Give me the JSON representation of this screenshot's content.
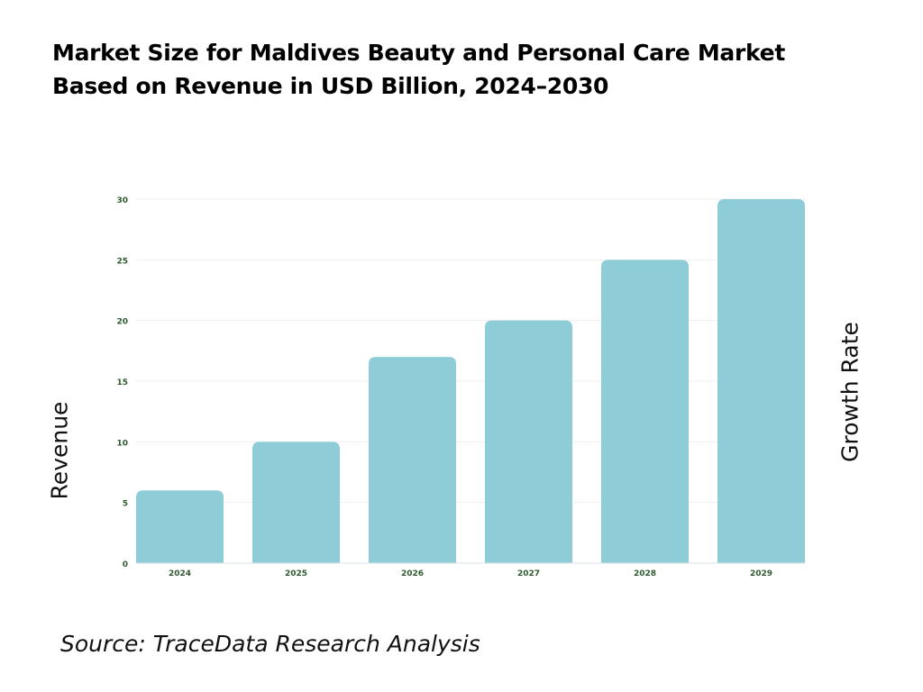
{
  "title_lines": [
    "Market Size for Maldives Beauty and Personal Care Market",
    "Based on Revenue in USD Billion, 2024–2030"
  ],
  "source": "Source: TraceData Research Analysis",
  "chart_data": {
    "type": "bar",
    "title": "Market Size for Maldives Beauty and Personal Care Market Based on Revenue in USD Billion, 2024–2030",
    "categories": [
      "2024",
      "2025",
      "2026",
      "2027",
      "2028",
      "2029"
    ],
    "values": [
      6,
      10,
      17,
      20,
      25,
      30
    ],
    "ylabel": "Revenue",
    "y2label": "Growth Rate",
    "xlabel": "",
    "ylim": [
      0,
      30
    ],
    "yticks": [
      0,
      5,
      10,
      15,
      20,
      25,
      30
    ],
    "grid": true,
    "legend": "none",
    "colors": {
      "bar": "#8ECCD8",
      "tick_label": "#2E5A2E",
      "grid": "#EEEEEE"
    }
  }
}
